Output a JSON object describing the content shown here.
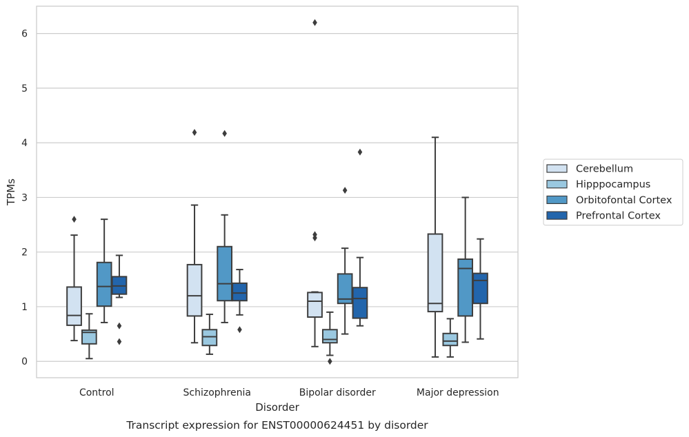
{
  "chart_data": {
    "type": "box",
    "caption": "Transcript expression for ENST00000624451 by disorder",
    "xlabel": "Disorder",
    "ylabel": "TPMs",
    "ylim": [
      -0.3,
      6.5
    ],
    "yticks": [
      0,
      1,
      2,
      3,
      4,
      5,
      6
    ],
    "grid": "horizontal",
    "legend_placement": "center-right",
    "categories": [
      "Control",
      "Schizophrenia",
      "Bipolar disorder",
      "Major depression"
    ],
    "series": [
      {
        "name": "Cerebellum",
        "color": "#d2e2f1",
        "boxes": [
          {
            "whislo": 0.38,
            "q1": 0.66,
            "med": 0.84,
            "q3": 1.36,
            "whishi": 2.31,
            "fliers": [
              2.6
            ]
          },
          {
            "whislo": 0.34,
            "q1": 0.83,
            "med": 1.2,
            "q3": 1.77,
            "whishi": 2.86,
            "fliers": [
              4.19
            ]
          },
          {
            "whislo": 0.27,
            "q1": 0.81,
            "med": 1.1,
            "q3": 1.26,
            "whishi": 1.27,
            "fliers": [
              2.26,
              2.32,
              6.2
            ]
          },
          {
            "whislo": 0.08,
            "q1": 0.91,
            "med": 1.06,
            "q3": 2.33,
            "whishi": 4.1,
            "fliers": []
          }
        ]
      },
      {
        "name": "Hipppocampus",
        "color": "#9ac8e0",
        "boxes": [
          {
            "whislo": 0.05,
            "q1": 0.32,
            "med": 0.53,
            "q3": 0.57,
            "whishi": 0.87,
            "fliers": []
          },
          {
            "whislo": 0.13,
            "q1": 0.29,
            "med": 0.45,
            "q3": 0.58,
            "whishi": 0.86,
            "fliers": []
          },
          {
            "whislo": 0.11,
            "q1": 0.34,
            "med": 0.4,
            "q3": 0.58,
            "whishi": 0.9,
            "fliers": [
              0.0
            ]
          },
          {
            "whislo": 0.08,
            "q1": 0.29,
            "med": 0.37,
            "q3": 0.51,
            "whishi": 0.78,
            "fliers": []
          }
        ]
      },
      {
        "name": "Orbitofontal Cortex",
        "color": "#5198c6",
        "boxes": [
          {
            "whislo": 0.71,
            "q1": 1.01,
            "med": 1.37,
            "q3": 1.81,
            "whishi": 2.6,
            "fliers": []
          },
          {
            "whislo": 0.71,
            "q1": 1.11,
            "med": 1.42,
            "q3": 2.1,
            "whishi": 2.68,
            "fliers": [
              4.17
            ]
          },
          {
            "whislo": 0.5,
            "q1": 1.06,
            "med": 1.14,
            "q3": 1.6,
            "whishi": 2.07,
            "fliers": [
              3.13
            ]
          },
          {
            "whislo": 0.35,
            "q1": 0.83,
            "med": 1.7,
            "q3": 1.87,
            "whishi": 3.0,
            "fliers": []
          }
        ]
      },
      {
        "name": "Prefrontal Cortex",
        "color": "#2265ac",
        "boxes": [
          {
            "whislo": 1.17,
            "q1": 1.23,
            "med": 1.38,
            "q3": 1.55,
            "whishi": 1.94,
            "fliers": [
              0.36,
              0.65
            ]
          },
          {
            "whislo": 0.85,
            "q1": 1.11,
            "med": 1.25,
            "q3": 1.43,
            "whishi": 1.68,
            "fliers": [
              0.58
            ]
          },
          {
            "whislo": 0.65,
            "q1": 0.79,
            "med": 1.15,
            "q3": 1.35,
            "whishi": 1.9,
            "fliers": [
              3.83
            ]
          },
          {
            "whislo": 0.41,
            "q1": 1.06,
            "med": 1.48,
            "q3": 1.61,
            "whishi": 2.24,
            "fliers": []
          }
        ]
      }
    ]
  }
}
